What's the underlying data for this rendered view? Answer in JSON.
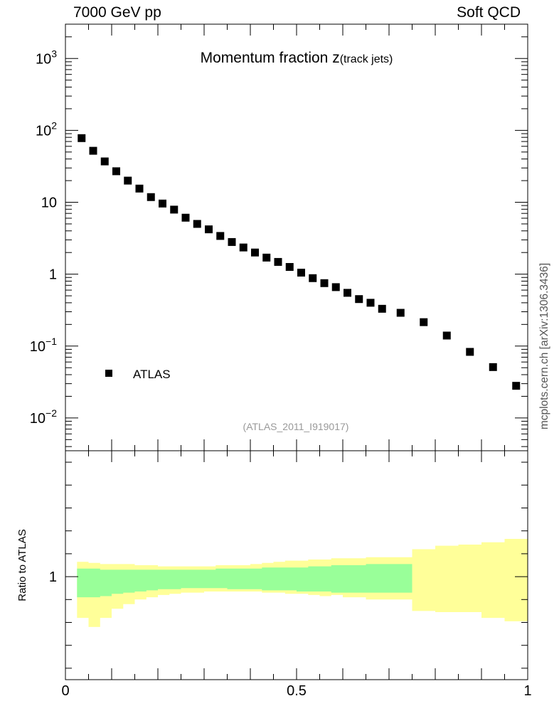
{
  "header": {
    "left": "7000 GeV pp",
    "right": "Soft QCD"
  },
  "side_label": "mcplots.cern.ch [arXiv:1306.3436]",
  "chart_data": {
    "type": "scatter",
    "title_main": "Momentum fraction z",
    "title_sub": "(track jets)",
    "analysis_tag": "(ATLAS_2011_I919017)",
    "legend": {
      "label": "ATLAS",
      "placement": "mid-left"
    },
    "x": [
      0.035,
      0.06,
      0.085,
      0.11,
      0.135,
      0.16,
      0.185,
      0.21,
      0.235,
      0.26,
      0.285,
      0.31,
      0.335,
      0.36,
      0.385,
      0.41,
      0.435,
      0.46,
      0.485,
      0.51,
      0.535,
      0.56,
      0.585,
      0.61,
      0.635,
      0.66,
      0.685,
      0.725,
      0.775,
      0.825,
      0.875,
      0.925,
      0.975
    ],
    "series": [
      {
        "name": "ATLAS",
        "color": "#000000",
        "values": [
          78,
          52,
          37,
          27,
          20,
          15.5,
          11.8,
          9.6,
          7.9,
          6.1,
          5.0,
          4.2,
          3.4,
          2.8,
          2.35,
          2.0,
          1.7,
          1.48,
          1.26,
          1.05,
          0.88,
          0.75,
          0.66,
          0.55,
          0.45,
          0.4,
          0.33,
          0.29,
          0.215,
          0.14,
          0.083,
          0.051,
          0.028
        ]
      }
    ],
    "main_y_scale": "log",
    "main_ylim": [
      0.0035,
      3000
    ],
    "main_y_ticks": [
      "10^-2",
      "10^-1",
      "1",
      "10",
      "10^2",
      "10^3"
    ],
    "xlim": [
      0,
      1.0
    ],
    "x_ticks": [
      "0",
      "0.5",
      "1"
    ],
    "ratio": {
      "ylabel": "Ratio to ATLAS",
      "ylim": [
        0.55,
        1.55
      ],
      "y_ticks": [
        "1"
      ],
      "band_edges": [
        0.025,
        0.05,
        0.075,
        0.1,
        0.125,
        0.15,
        0.175,
        0.2,
        0.225,
        0.25,
        0.275,
        0.3,
        0.325,
        0.35,
        0.375,
        0.4,
        0.425,
        0.45,
        0.475,
        0.5,
        0.525,
        0.55,
        0.575,
        0.6,
        0.625,
        0.65,
        0.675,
        0.7,
        0.75,
        0.8,
        0.85,
        0.9,
        0.95,
        1.0
      ],
      "stat_band": {
        "color": "#99ff99",
        "low": [
          0.91,
          0.91,
          0.915,
          0.925,
          0.93,
          0.935,
          0.94,
          0.945,
          0.945,
          0.95,
          0.95,
          0.95,
          0.95,
          0.945,
          0.945,
          0.945,
          0.94,
          0.94,
          0.94,
          0.935,
          0.935,
          0.935,
          0.93,
          0.93,
          0.93,
          0.93,
          0.93,
          0.93,
          null,
          null,
          null,
          null,
          null
        ],
        "high": [
          1.035,
          1.035,
          1.03,
          1.03,
          1.03,
          1.03,
          1.03,
          1.03,
          1.03,
          1.03,
          1.03,
          1.03,
          1.035,
          1.035,
          1.035,
          1.035,
          1.04,
          1.04,
          1.04,
          1.04,
          1.045,
          1.045,
          1.05,
          1.05,
          1.05,
          1.055,
          1.055,
          1.055,
          null,
          null,
          null,
          null,
          null
        ]
      },
      "syst_band": {
        "color": "#ffff99",
        "low": [
          0.82,
          0.78,
          0.82,
          0.86,
          0.88,
          0.9,
          0.91,
          0.92,
          0.925,
          0.93,
          0.93,
          0.935,
          0.935,
          0.935,
          0.935,
          0.935,
          0.93,
          0.93,
          0.925,
          0.925,
          0.92,
          0.915,
          0.92,
          0.91,
          0.91,
          0.9,
          0.9,
          0.9,
          0.85,
          0.845,
          0.845,
          0.82,
          0.805
        ],
        "high": [
          1.065,
          1.06,
          1.055,
          1.055,
          1.055,
          1.05,
          1.05,
          1.045,
          1.045,
          1.045,
          1.045,
          1.045,
          1.05,
          1.05,
          1.05,
          1.055,
          1.06,
          1.065,
          1.07,
          1.07,
          1.075,
          1.075,
          1.08,
          1.08,
          1.08,
          1.085,
          1.085,
          1.085,
          1.12,
          1.135,
          1.14,
          1.15,
          1.165
        ]
      }
    }
  }
}
